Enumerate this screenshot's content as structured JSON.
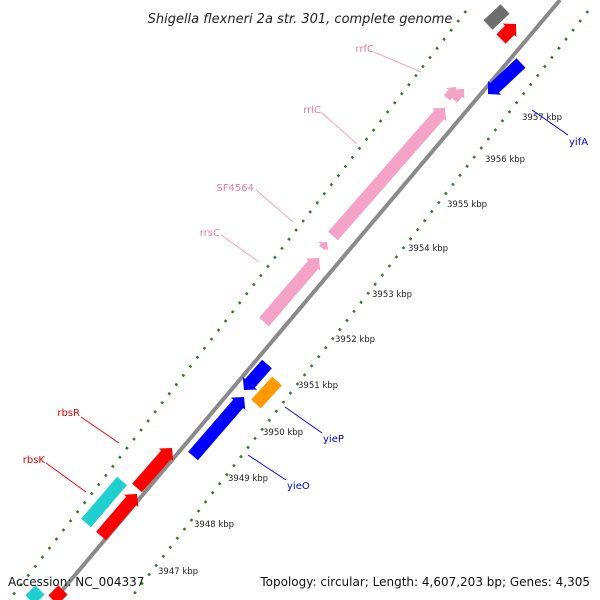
{
  "header": {
    "title": "Shigella flexneri 2a str. 301, complete genome"
  },
  "footer": {
    "accession": "Accession: NC_004337",
    "summary": "Topology: circular; Length: 4,607,203 bp; Genes: 4,305"
  },
  "colors": {
    "backbone": "#808080",
    "tick_dots": "#2e7d1e",
    "rrna": "#f4a3c6",
    "rrna_label": "#e97aa8",
    "cds_red": "#ff0000",
    "cds_blue": "#0000ff",
    "cds_cyan": "#20d0d0",
    "cds_orange": "#ff9900",
    "cds_gray": "#6e6e6e"
  },
  "ticks": [
    "3947 kbp",
    "3948 kbp",
    "3949 kbp",
    "3950 kbp",
    "3951 kbp",
    "3952 kbp",
    "3953 kbp",
    "3954 kbp",
    "3955 kbp",
    "3956 kbp",
    "3957 kbp"
  ],
  "labels": {
    "rrfC": "rrfC",
    "rrlC": "rrlC",
    "SF4564": "SF4564",
    "rrsC": "rrsC",
    "rbsR": "rbsR",
    "rbsK": "rbsK",
    "yifA": "yifA",
    "yieP": "yieP",
    "yieO": "yieO"
  }
}
